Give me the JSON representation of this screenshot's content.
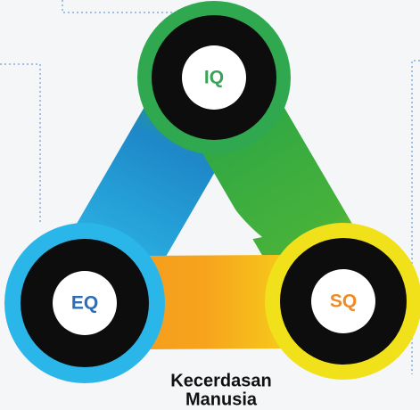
{
  "nodes": [
    {
      "label": "IQ"
    },
    {
      "label": "EQ"
    },
    {
      "label": "SQ"
    }
  ],
  "caption": {
    "line1": "Kecerdasan",
    "line2": "Manusia"
  }
}
